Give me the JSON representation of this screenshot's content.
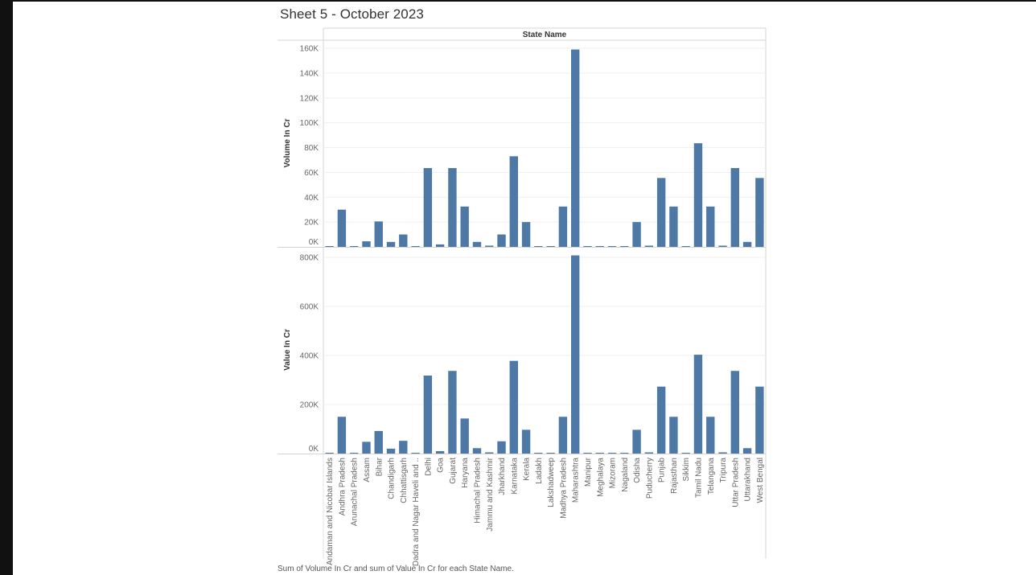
{
  "sheet": {
    "title": "Sheet 5 - October 2023",
    "caption": "Sum of Volume In Cr and sum of Value In Cr for each State Name."
  },
  "colors": {
    "bar": "#4e79a7",
    "gridline": "#efefef",
    "axis": "#d4d4d4",
    "text": "#666666"
  },
  "chart_data": [
    {
      "type": "bar",
      "title": "",
      "header": "State Name",
      "xlabel": "",
      "ylabel": "Volume In Cr",
      "ylim": [
        0,
        160000
      ],
      "yticks": [
        0,
        20000,
        40000,
        60000,
        80000,
        100000,
        120000,
        140000,
        160000
      ],
      "ytick_labels": [
        "0K",
        "20K",
        "40K",
        "60K",
        "80K",
        "100K",
        "120K",
        "140K",
        "160K"
      ],
      "grid": true,
      "categories": [
        "Andaman and Nicobar Islands",
        "Andhra Pradesh",
        "Arunachal Pradesh",
        "Assam",
        "Bihar",
        "Chandigarh",
        "Chhattisgarh",
        "Dadra and Nagar Haveli and ..",
        "Delhi",
        "Goa",
        "Gujarat",
        "Haryana",
        "Himachal Pradesh",
        "Jammu and Kashmir",
        "Jharkhand",
        "Karnataka",
        "Kerala",
        "Ladakh",
        "Lakshadweep",
        "Madhya Pradesh",
        "Maharashtra",
        "Manipur",
        "Meghalaya",
        "Mizoram",
        "Nagaland",
        "Odisha",
        "Puducherry",
        "Punjab",
        "Rajasthan",
        "Sikkim",
        "Tamil Nadu",
        "Telangana",
        "Tripura",
        "Uttar Pradesh",
        "Uttarakhand",
        "West Bengal"
      ],
      "values": [
        300,
        30000,
        400,
        4500,
        20500,
        4000,
        10000,
        500,
        63500,
        2000,
        63500,
        32500,
        4000,
        1000,
        10000,
        73000,
        20000,
        100,
        100,
        32500,
        159000,
        300,
        300,
        200,
        300,
        20000,
        1000,
        55500,
        32500,
        500,
        83500,
        32500,
        1000,
        63500,
        4000,
        55500
      ]
    },
    {
      "type": "bar",
      "title": "",
      "xlabel": "",
      "ylabel": "Value In Cr",
      "ylim": [
        0,
        800000
      ],
      "yticks": [
        0,
        200000,
        400000,
        600000,
        800000
      ],
      "ytick_labels": [
        "0K",
        "200K",
        "400K",
        "600K",
        "800K"
      ],
      "grid": true,
      "categories": [
        "Andaman and Nicobar Islands",
        "Andhra Pradesh",
        "Arunachal Pradesh",
        "Assam",
        "Bihar",
        "Chandigarh",
        "Chhattisgarh",
        "Dadra and Nagar Haveli and ..",
        "Delhi",
        "Goa",
        "Gujarat",
        "Haryana",
        "Himachal Pradesh",
        "Jammu and Kashmir",
        "Jharkhand",
        "Karnataka",
        "Kerala",
        "Ladakh",
        "Lakshadweep",
        "Madhya Pradesh",
        "Maharashtra",
        "Manipur",
        "Meghalaya",
        "Mizoram",
        "Nagaland",
        "Odisha",
        "Puducherry",
        "Punjab",
        "Rajasthan",
        "Sikkim",
        "Tamil Nadu",
        "Telangana",
        "Tripura",
        "Uttar Pradesh",
        "Uttarakhand",
        "West Bengal"
      ],
      "values": [
        1000,
        150000,
        1500,
        48000,
        92000,
        20000,
        52000,
        1500,
        318000,
        10000,
        337000,
        143000,
        22000,
        5000,
        50000,
        378000,
        97000,
        500,
        500,
        150000,
        808000,
        1000,
        1000,
        800,
        1000,
        97000,
        5000,
        273000,
        150000,
        1500,
        403000,
        150000,
        5000,
        337000,
        22000,
        273000
      ]
    }
  ]
}
